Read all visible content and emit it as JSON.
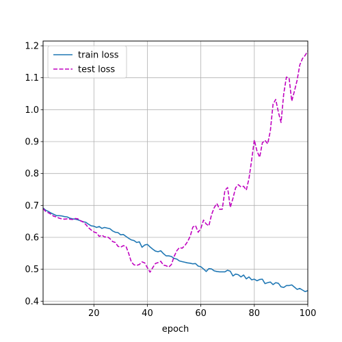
{
  "chart_data": {
    "type": "line",
    "title": "",
    "xlabel": "epoch",
    "ylabel": "",
    "xlim": [
      1,
      100
    ],
    "ylim": [
      0.39,
      1.215
    ],
    "xticks": [
      20,
      40,
      60,
      80,
      100
    ],
    "yticks": [
      0.4,
      0.5,
      0.6,
      0.7,
      0.8,
      0.9,
      1.0,
      1.1,
      1.2
    ],
    "ytick_labels": [
      "0.4",
      "0.5",
      "0.6",
      "0.7",
      "0.8",
      "0.9",
      "1.0",
      "1.1",
      "1.2"
    ],
    "grid": true,
    "legend_position": "upper-left",
    "x": [
      1,
      2,
      3,
      4,
      5,
      6,
      7,
      8,
      9,
      10,
      11,
      12,
      13,
      14,
      15,
      16,
      17,
      18,
      19,
      20,
      21,
      22,
      23,
      24,
      25,
      26,
      27,
      28,
      29,
      30,
      31,
      32,
      33,
      34,
      35,
      36,
      37,
      38,
      39,
      40,
      41,
      42,
      43,
      44,
      45,
      46,
      47,
      48,
      49,
      50,
      51,
      52,
      53,
      54,
      55,
      56,
      57,
      58,
      59,
      60,
      61,
      62,
      63,
      64,
      65,
      66,
      67,
      68,
      69,
      70,
      71,
      72,
      73,
      74,
      75,
      76,
      77,
      78,
      79,
      80,
      81,
      82,
      83,
      84,
      85,
      86,
      87,
      88,
      89,
      90,
      91,
      92,
      93,
      94,
      95,
      96,
      97,
      98,
      99,
      100
    ],
    "series": [
      {
        "name": "train loss",
        "color": "#1f77b4",
        "style": "solid",
        "values": [
          0.692,
          0.685,
          0.681,
          0.676,
          0.672,
          0.668,
          0.668,
          0.667,
          0.665,
          0.664,
          0.66,
          0.658,
          0.657,
          0.655,
          0.652,
          0.649,
          0.647,
          0.641,
          0.636,
          0.635,
          0.631,
          0.634,
          0.628,
          0.631,
          0.629,
          0.627,
          0.62,
          0.616,
          0.615,
          0.608,
          0.609,
          0.603,
          0.597,
          0.592,
          0.59,
          0.584,
          0.586,
          0.569,
          0.576,
          0.578,
          0.57,
          0.563,
          0.557,
          0.555,
          0.558,
          0.549,
          0.542,
          0.542,
          0.54,
          0.534,
          0.532,
          0.526,
          0.524,
          0.522,
          0.52,
          0.519,
          0.517,
          0.518,
          0.51,
          0.508,
          0.501,
          0.493,
          0.502,
          0.501,
          0.495,
          0.493,
          0.492,
          0.492,
          0.492,
          0.497,
          0.494,
          0.479,
          0.485,
          0.483,
          0.476,
          0.482,
          0.47,
          0.476,
          0.467,
          0.469,
          0.464,
          0.468,
          0.469,
          0.455,
          0.458,
          0.46,
          0.452,
          0.458,
          0.456,
          0.445,
          0.443,
          0.449,
          0.449,
          0.451,
          0.444,
          0.437,
          0.44,
          0.435,
          0.43,
          0.433
        ]
      },
      {
        "name": "test loss",
        "color": "#bf00bf",
        "style": "dashed",
        "values": [
          0.69,
          0.681,
          0.677,
          0.672,
          0.666,
          0.664,
          0.66,
          0.658,
          0.657,
          0.658,
          0.657,
          0.656,
          0.659,
          0.658,
          0.652,
          0.648,
          0.64,
          0.63,
          0.623,
          0.617,
          0.614,
          0.603,
          0.607,
          0.601,
          0.602,
          0.596,
          0.587,
          0.584,
          0.572,
          0.569,
          0.574,
          0.572,
          0.55,
          0.523,
          0.514,
          0.512,
          0.515,
          0.523,
          0.52,
          0.505,
          0.491,
          0.505,
          0.518,
          0.521,
          0.525,
          0.513,
          0.511,
          0.507,
          0.515,
          0.54,
          0.558,
          0.568,
          0.566,
          0.574,
          0.586,
          0.603,
          0.632,
          0.637,
          0.616,
          0.628,
          0.654,
          0.642,
          0.636,
          0.671,
          0.693,
          0.706,
          0.688,
          0.688,
          0.747,
          0.756,
          0.694,
          0.722,
          0.755,
          0.765,
          0.758,
          0.76,
          0.748,
          0.784,
          0.842,
          0.905,
          0.87,
          0.851,
          0.896,
          0.904,
          0.893,
          0.934,
          1.017,
          1.032,
          0.992,
          0.96,
          1.05,
          1.102,
          1.099,
          1.027,
          1.058,
          1.092,
          1.14,
          1.16,
          1.17,
          1.184
        ]
      }
    ]
  }
}
